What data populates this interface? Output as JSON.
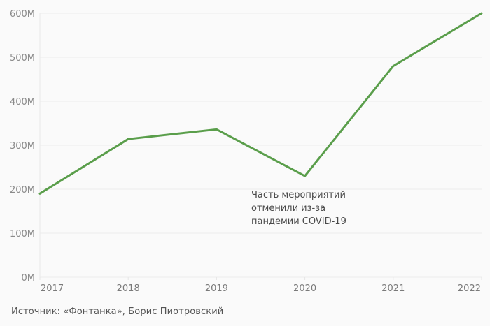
{
  "chart_data": {
    "type": "line",
    "title": "",
    "xlabel": "",
    "ylabel": "",
    "x": [
      "2017",
      "2018",
      "2019",
      "2020",
      "2021",
      "2022"
    ],
    "series": [
      {
        "name": "value",
        "values": [
          190,
          314,
          336,
          230,
          480,
          600
        ],
        "color": "#5a9e4b"
      }
    ],
    "ylim": [
      0,
      600
    ],
    "yticks": [
      0,
      100,
      200,
      300,
      400,
      500,
      600
    ],
    "ytick_labels": [
      "0M",
      "100M",
      "200M",
      "300M",
      "400M",
      "500M",
      "600M"
    ],
    "grid": true,
    "annotations": [
      {
        "x": "2020",
        "lines": [
          "Часть мероприятий",
          "отменили из-за",
          "пандемии COVID-19"
        ]
      }
    ]
  },
  "source": "Источник: «Фонтанка», Борис Пиотровский"
}
